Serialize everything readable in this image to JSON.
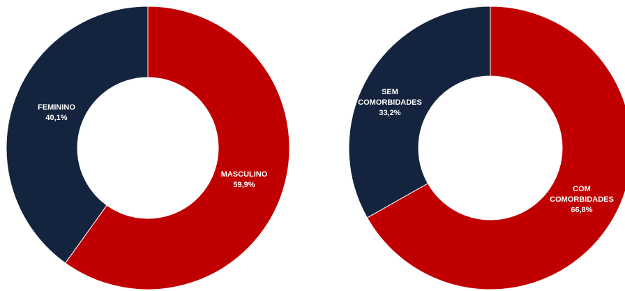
{
  "chart_data": [
    {
      "type": "pie",
      "donut": true,
      "title": "",
      "slices": [
        {
          "label": "MASCULINO",
          "value": 59.9,
          "value_label": "59,9%",
          "color": "#c00000"
        },
        {
          "label": "FEMININO",
          "value": 40.1,
          "value_label": "40,1%",
          "color": "#14243e"
        }
      ]
    },
    {
      "type": "pie",
      "donut": true,
      "title": "",
      "slices": [
        {
          "label": "COM COMORBIDADES",
          "value": 66.8,
          "value_label": "66,8%",
          "color": "#c00000"
        },
        {
          "label": "SEM COMORBIDADES",
          "value": 33.2,
          "value_label": "33,2%",
          "color": "#14243e"
        }
      ]
    }
  ]
}
